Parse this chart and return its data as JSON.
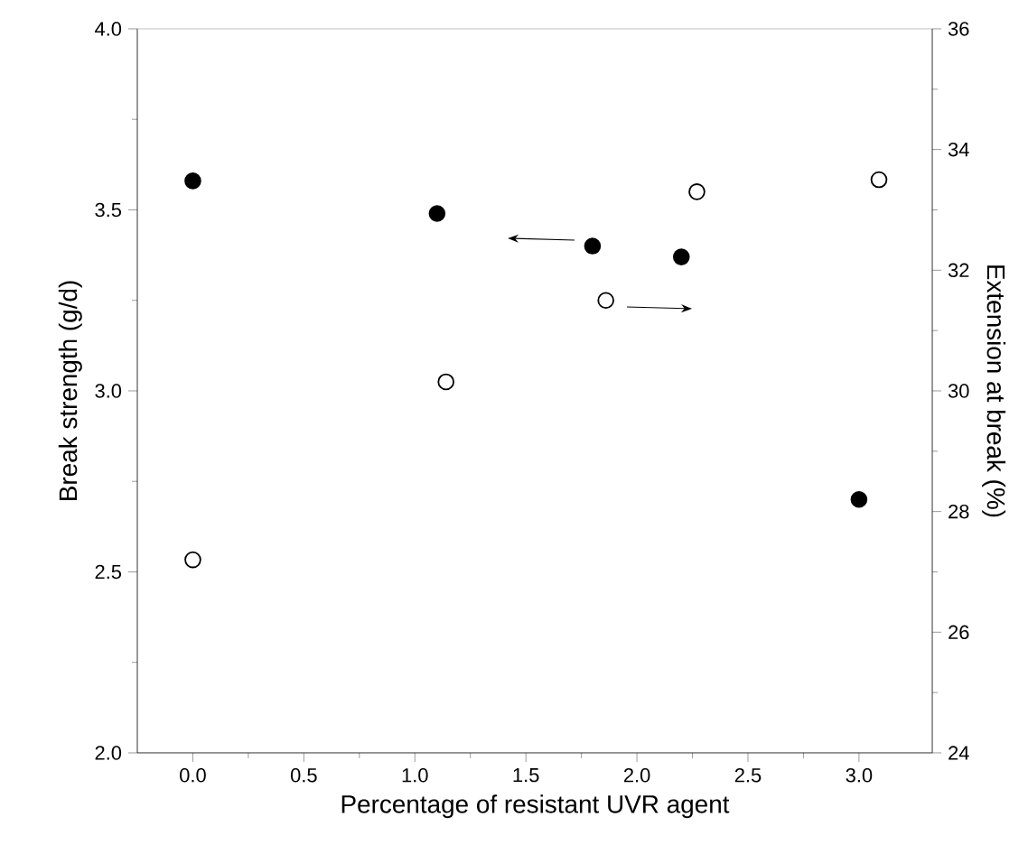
{
  "chart_data": {
    "type": "scatter",
    "xlabel": "Percentage of resistant UVR agent",
    "ylabel": "Break strength (g/d)",
    "y2label": "Extension at break (%)",
    "xlim": [
      -0.25,
      3.33
    ],
    "xticks": [
      {
        "value": 0,
        "label": "0.0"
      },
      0.5,
      {
        "value": 1,
        "label": "1.0"
      },
      1.5,
      {
        "value": 2,
        "label": "2.0"
      },
      2.5,
      {
        "value": 3,
        "label": "3.0"
      }
    ],
    "ylim": [
      2.0,
      4.0
    ],
    "yticks": [
      {
        "value": 2,
        "label": "2.0"
      },
      2.5,
      {
        "value": 3,
        "label": "3.0"
      },
      3.5,
      {
        "value": 4,
        "label": "4.0"
      }
    ],
    "y2lim": [
      24,
      36
    ],
    "y2ticks": [
      24,
      26,
      28,
      30,
      32,
      34,
      36
    ],
    "marker": "circle",
    "series": [
      {
        "color": "#000000",
        "x": [
          0,
          1.1,
          1.8,
          2.2,
          3.0
        ],
        "values": [
          3.58,
          3.49,
          3.4,
          3.37,
          2.7
        ]
      },
      {
        "color": "#ffffff",
        "axis": "y2",
        "x": [
          0,
          1.14,
          1.86,
          2.27,
          3.09
        ],
        "values": [
          27.2,
          30.15,
          31.5,
          33.3,
          33.5
        ]
      }
    ]
  }
}
